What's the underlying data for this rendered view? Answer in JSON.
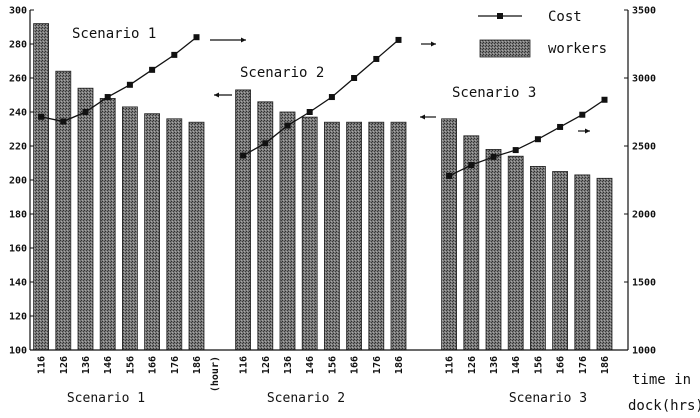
{
  "chart_data": {
    "type": "bar+line",
    "groups": [
      {
        "label": "Scenario 1",
        "categories": [
          "116",
          "126",
          "136",
          "146",
          "156",
          "166",
          "176",
          "186"
        ],
        "workers": [
          292,
          264,
          254,
          248,
          243,
          239,
          236,
          234
        ],
        "cost": [
          2715,
          2680,
          2750,
          2860,
          2950,
          3060,
          3170,
          3300
        ]
      },
      {
        "label": "Scenario 2",
        "categories": [
          "116",
          "126",
          "136",
          "146",
          "156",
          "166",
          "176",
          "186"
        ],
        "workers": [
          253,
          246,
          240,
          237,
          234,
          234,
          234,
          234
        ],
        "cost": [
          2430,
          2520,
          2650,
          2750,
          2860,
          3000,
          3140,
          3280
        ]
      },
      {
        "label": "Scenario 3",
        "categories": [
          "116",
          "126",
          "136",
          "146",
          "156",
          "166",
          "176",
          "186"
        ],
        "workers": [
          236,
          226,
          218,
          214,
          208,
          205,
          203,
          201
        ],
        "cost": [
          2280,
          2360,
          2420,
          2470,
          2550,
          2640,
          2730,
          2840
        ]
      }
    ],
    "separator_tick": "(hour)",
    "left_axis": {
      "min": 100,
      "max": 300,
      "step": 20
    },
    "right_axis": {
      "min": 1000,
      "max": 3500,
      "step": 500
    },
    "x_axis_label": [
      "time in",
      "dock(hrs)"
    ],
    "legend": [
      {
        "name": "Cost",
        "kind": "line-square-marker"
      },
      {
        "name": "workers",
        "kind": "hatched-bar"
      }
    ],
    "annotations": [
      "Scenario 1",
      "Scenario 2",
      "Scenario 3"
    ],
    "group_labels": [
      "Scenario 1",
      "Scenario 2",
      "Scenario 3"
    ],
    "colors": {
      "bar": "#666666",
      "bar_edge": "#222222",
      "line": "#111111"
    }
  }
}
